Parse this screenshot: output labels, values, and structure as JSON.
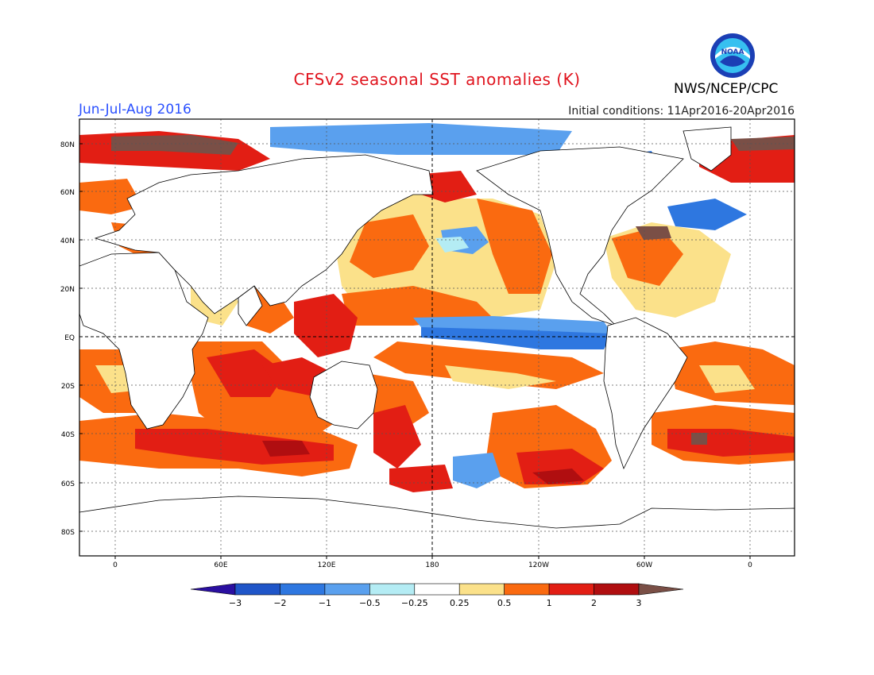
{
  "title": "CFSv2 seasonal SST anomalies (K)",
  "period": "Jun-Jul-Aug 2016",
  "initial_conditions": "Initial conditions: 11Apr2016-20Apr2016",
  "agency": "NWS/NCEP/CPC",
  "logo_text": "NOAA",
  "lat_labels": [
    "80N",
    "60N",
    "40N",
    "20N",
    "EQ",
    "20S",
    "40S",
    "60S",
    "80S"
  ],
  "lon_labels": [
    "0",
    "60E",
    "120E",
    "180",
    "120W",
    "60W",
    "0"
  ],
  "colorbar": {
    "labels": [
      "-3",
      "-2",
      "-1",
      "-0.5",
      "-0.25",
      "0.25",
      "0.5",
      "1",
      "2",
      "3"
    ],
    "colors": [
      "#2a0fa0",
      "#1f55c8",
      "#2e77e0",
      "#5aa0ee",
      "#b4ecf4",
      "#ffffff",
      "#fbe18a",
      "#fa6a10",
      "#e21e14",
      "#b00e10",
      "#7a4f46"
    ]
  },
  "land_color": "#ffffff",
  "ocean_base_color": "#ffffff"
}
